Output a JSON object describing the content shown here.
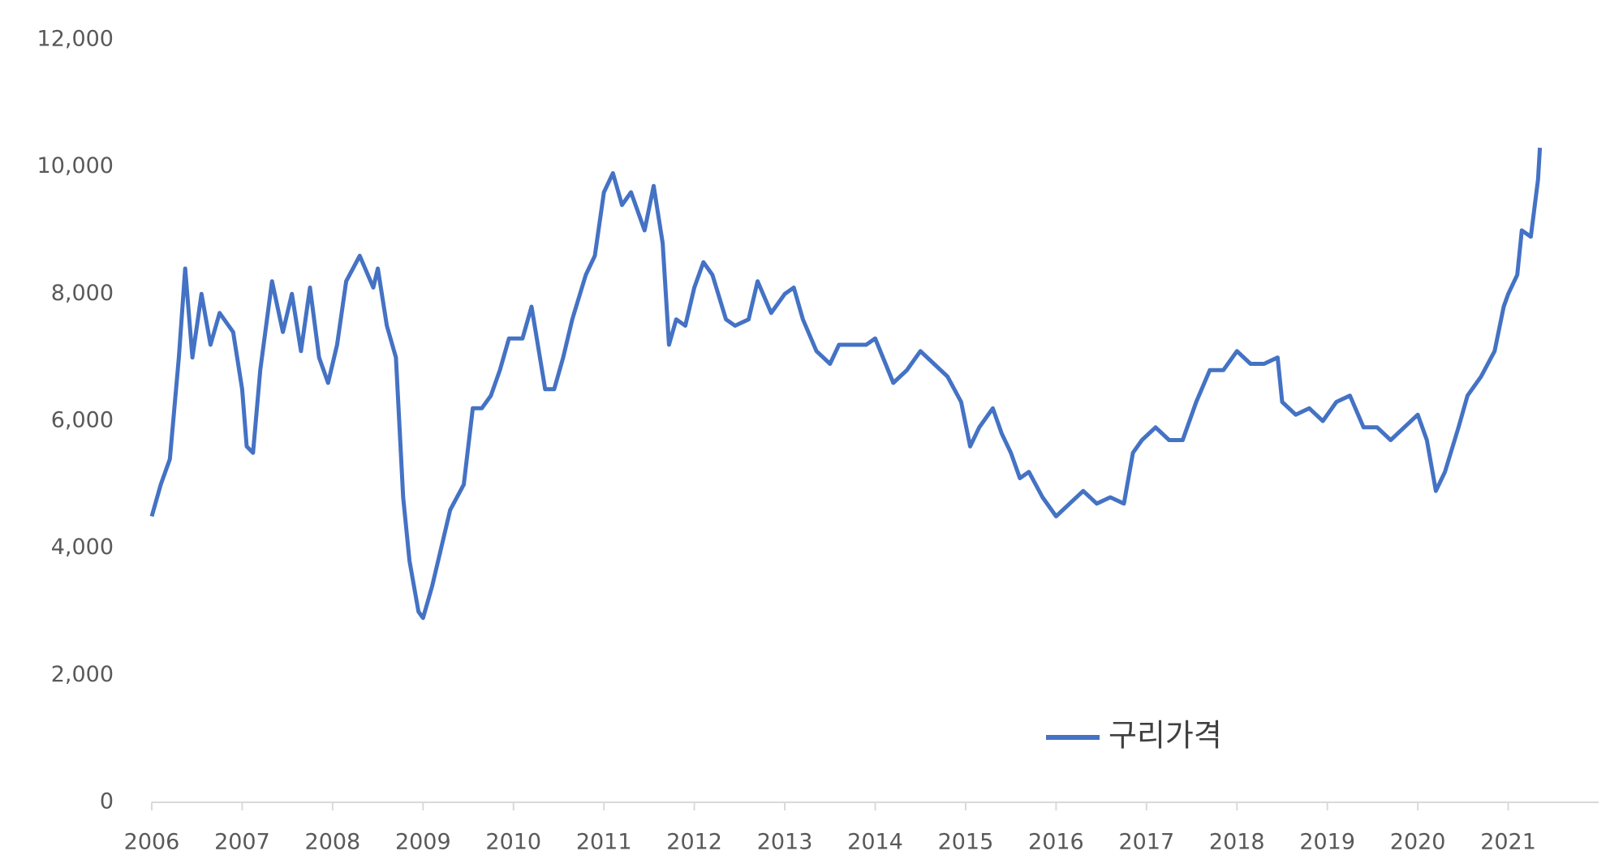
{
  "chart_data": {
    "type": "line",
    "x": [
      2006.0,
      2006.1,
      2006.2,
      2006.3,
      2006.37,
      2006.45,
      2006.55,
      2006.65,
      2006.75,
      2006.9,
      2007.0,
      2007.05,
      2007.12,
      2007.2,
      2007.33,
      2007.45,
      2007.55,
      2007.65,
      2007.75,
      2007.85,
      2007.95,
      2008.05,
      2008.15,
      2008.3,
      2008.45,
      2008.5,
      2008.6,
      2008.7,
      2008.78,
      2008.85,
      2008.95,
      2009.0,
      2009.1,
      2009.2,
      2009.3,
      2009.45,
      2009.55,
      2009.65,
      2009.75,
      2009.85,
      2009.95,
      2010.1,
      2010.2,
      2010.35,
      2010.45,
      2010.55,
      2010.65,
      2010.8,
      2010.9,
      2011.0,
      2011.1,
      2011.2,
      2011.3,
      2011.45,
      2011.55,
      2011.65,
      2011.72,
      2011.8,
      2011.9,
      2012.0,
      2012.1,
      2012.2,
      2012.35,
      2012.45,
      2012.6,
      2012.7,
      2012.85,
      2013.0,
      2013.1,
      2013.2,
      2013.35,
      2013.5,
      2013.6,
      2013.75,
      2013.9,
      2014.0,
      2014.2,
      2014.35,
      2014.5,
      2014.65,
      2014.8,
      2014.95,
      2015.05,
      2015.15,
      2015.3,
      2015.4,
      2015.5,
      2015.6,
      2015.7,
      2015.85,
      2016.0,
      2016.15,
      2016.3,
      2016.45,
      2016.6,
      2016.75,
      2016.85,
      2016.95,
      2017.1,
      2017.25,
      2017.4,
      2017.55,
      2017.7,
      2017.85,
      2018.0,
      2018.15,
      2018.3,
      2018.45,
      2018.5,
      2018.65,
      2018.8,
      2018.95,
      2019.1,
      2019.25,
      2019.4,
      2019.55,
      2019.7,
      2019.85,
      2020.0,
      2020.1,
      2020.2,
      2020.3,
      2020.45,
      2020.55,
      2020.7,
      2020.85,
      2020.95,
      2021.0,
      2021.1,
      2021.15,
      2021.25,
      2021.33,
      2021.35
    ],
    "series": [
      {
        "name": "구리가격",
        "color": "#4472c4",
        "values": [
          4500,
          5000,
          5400,
          7000,
          8400,
          7000,
          8000,
          7200,
          7700,
          7400,
          6500,
          5600,
          5500,
          6800,
          8200,
          7400,
          8000,
          7100,
          8100,
          7000,
          6600,
          7200,
          8200,
          8600,
          8100,
          8400,
          7500,
          7000,
          4800,
          3800,
          3000,
          2900,
          3400,
          4000,
          4600,
          5000,
          6200,
          6200,
          6400,
          6800,
          7300,
          7300,
          7800,
          6500,
          6500,
          7000,
          7600,
          8300,
          8600,
          9600,
          9900,
          9400,
          9600,
          9000,
          9700,
          8800,
          7200,
          7600,
          7500,
          8100,
          8500,
          8300,
          7600,
          7500,
          7600,
          8200,
          7700,
          8000,
          8100,
          7600,
          7100,
          6900,
          7200,
          7200,
          7200,
          7300,
          6600,
          6800,
          7100,
          6900,
          6700,
          6300,
          5600,
          5900,
          6200,
          5800,
          5500,
          5100,
          5200,
          4800,
          4500,
          4700,
          4900,
          4700,
          4800,
          4700,
          5500,
          5700,
          5900,
          5700,
          5700,
          6300,
          6800,
          6800,
          7100,
          6900,
          6900,
          7000,
          6300,
          6100,
          6200,
          6000,
          6300,
          6400,
          5900,
          5900,
          5700,
          5900,
          6100,
          5700,
          4900,
          5200,
          5900,
          6400,
          6700,
          7100,
          7800,
          8000,
          8300,
          9000,
          8900,
          9800,
          10300
        ]
      }
    ],
    "xlim": [
      2006,
      2022
    ],
    "xticks": [
      2006,
      2007,
      2008,
      2009,
      2010,
      2011,
      2012,
      2013,
      2014,
      2015,
      2016,
      2017,
      2018,
      2019,
      2020,
      2021
    ],
    "ylim": [
      0,
      12000
    ],
    "yticks": [
      0,
      {
        "value": 2000,
        "label": "2,000"
      },
      {
        "value": 4000,
        "label": "4,000"
      },
      {
        "value": 6000,
        "label": "6,000"
      },
      {
        "value": 8000,
        "label": "8,000"
      },
      {
        "value": 10000,
        "label": "10,000"
      },
      {
        "value": 12000,
        "label": "12,000"
      }
    ]
  }
}
